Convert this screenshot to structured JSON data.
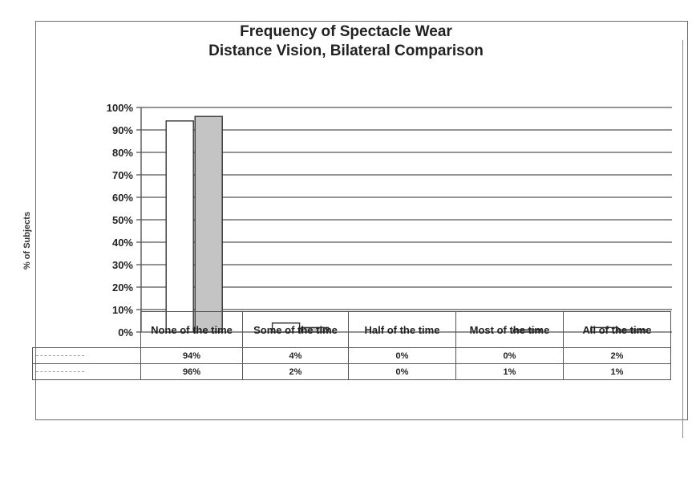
{
  "chart_data": {
    "type": "bar",
    "title": "Frequency of Spectacle Wear",
    "subtitle": "Distance Vision, Bilateral Comparison",
    "ylabel": "% of Subjects",
    "xlabel": "",
    "ylim": [
      0,
      100
    ],
    "yticks": [
      "100%",
      "90%",
      "80%",
      "70%",
      "60%",
      "50%",
      "40%",
      "30%",
      "20%",
      "10%",
      "0%"
    ],
    "grid": true,
    "categories": [
      "None of the time",
      "Some of the time",
      "Half of the time",
      "Most of the time",
      "All of the time"
    ],
    "series": [
      {
        "values": [
          94,
          4,
          0,
          0,
          2
        ],
        "labels": [
          "94%",
          "4%",
          "0%",
          "0%",
          "2%"
        ],
        "color": "#ffffff"
      },
      {
        "values": [
          96,
          2,
          0,
          1,
          1
        ],
        "labels": [
          "96%",
          "2%",
          "0%",
          "1%",
          "1%"
        ],
        "color": "#c4c4c4"
      }
    ]
  }
}
